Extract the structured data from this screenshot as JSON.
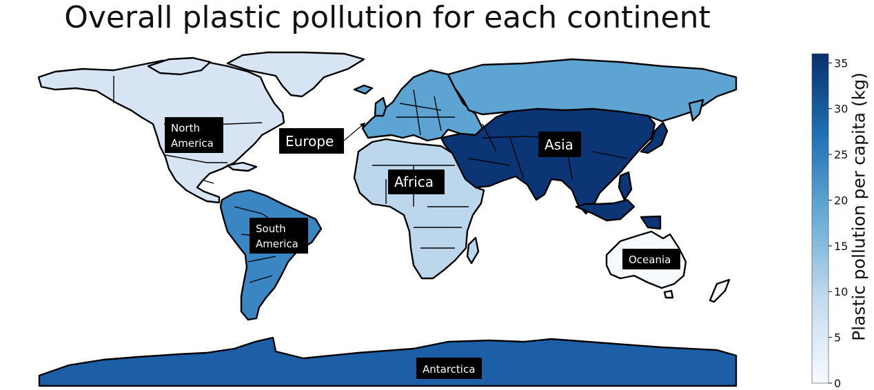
{
  "title": "Overall plastic pollution for each continent",
  "colorbar": {
    "label": "Plastic pollution per capita (kg)",
    "min": 0,
    "max": 36,
    "ticks": [
      "0",
      "5",
      "10",
      "15",
      "20",
      "25",
      "30",
      "35"
    ],
    "colors": [
      "#f7fbff",
      "#08306b"
    ],
    "colormap": "Blues"
  },
  "continents": {
    "north_america": {
      "label": "North America",
      "lines": [
        "North",
        "America"
      ],
      "value": 7,
      "color": "#d6e4f4"
    },
    "south_america": {
      "label": "South America",
      "lines": [
        "South",
        "America"
      ],
      "value": 22,
      "color": "#3a86c3"
    },
    "europe": {
      "label": "Europe",
      "value": 20,
      "color": "#5da4d2"
    },
    "africa": {
      "label": "Africa",
      "value": 11,
      "color": "#bcd7ec"
    },
    "asia": {
      "label": "Asia",
      "value": 35,
      "color": "#0b3575"
    },
    "russia": {
      "label": "",
      "value": 19,
      "color": "#5da4d2"
    },
    "oceania": {
      "label": "Oceania",
      "value": 0.5,
      "color": "#f6f9fd"
    },
    "antarctica": {
      "label": "Antarctica",
      "value": 27,
      "color": "#1d5fa6"
    }
  }
}
